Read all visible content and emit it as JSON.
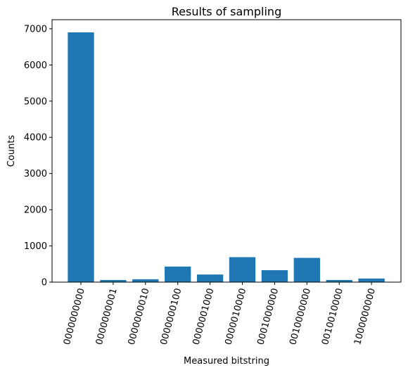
{
  "chart_data": {
    "type": "bar",
    "title": "Results of sampling",
    "xlabel": "Measured bitstring",
    "ylabel": "Counts",
    "categories": [
      "0000000000",
      "0000000001",
      "0000000010",
      "0000000100",
      "0000001000",
      "0000010000",
      "0001000000",
      "0010000000",
      "0010010000",
      "1000000000"
    ],
    "values": [
      6900,
      60,
      80,
      430,
      210,
      690,
      330,
      670,
      60,
      100
    ],
    "ylim": [
      0,
      7250
    ],
    "yticks": [
      0,
      1000,
      2000,
      3000,
      4000,
      5000,
      6000,
      7000
    ],
    "bar_color": "#1f77b4",
    "grid": false,
    "legend": "none"
  }
}
